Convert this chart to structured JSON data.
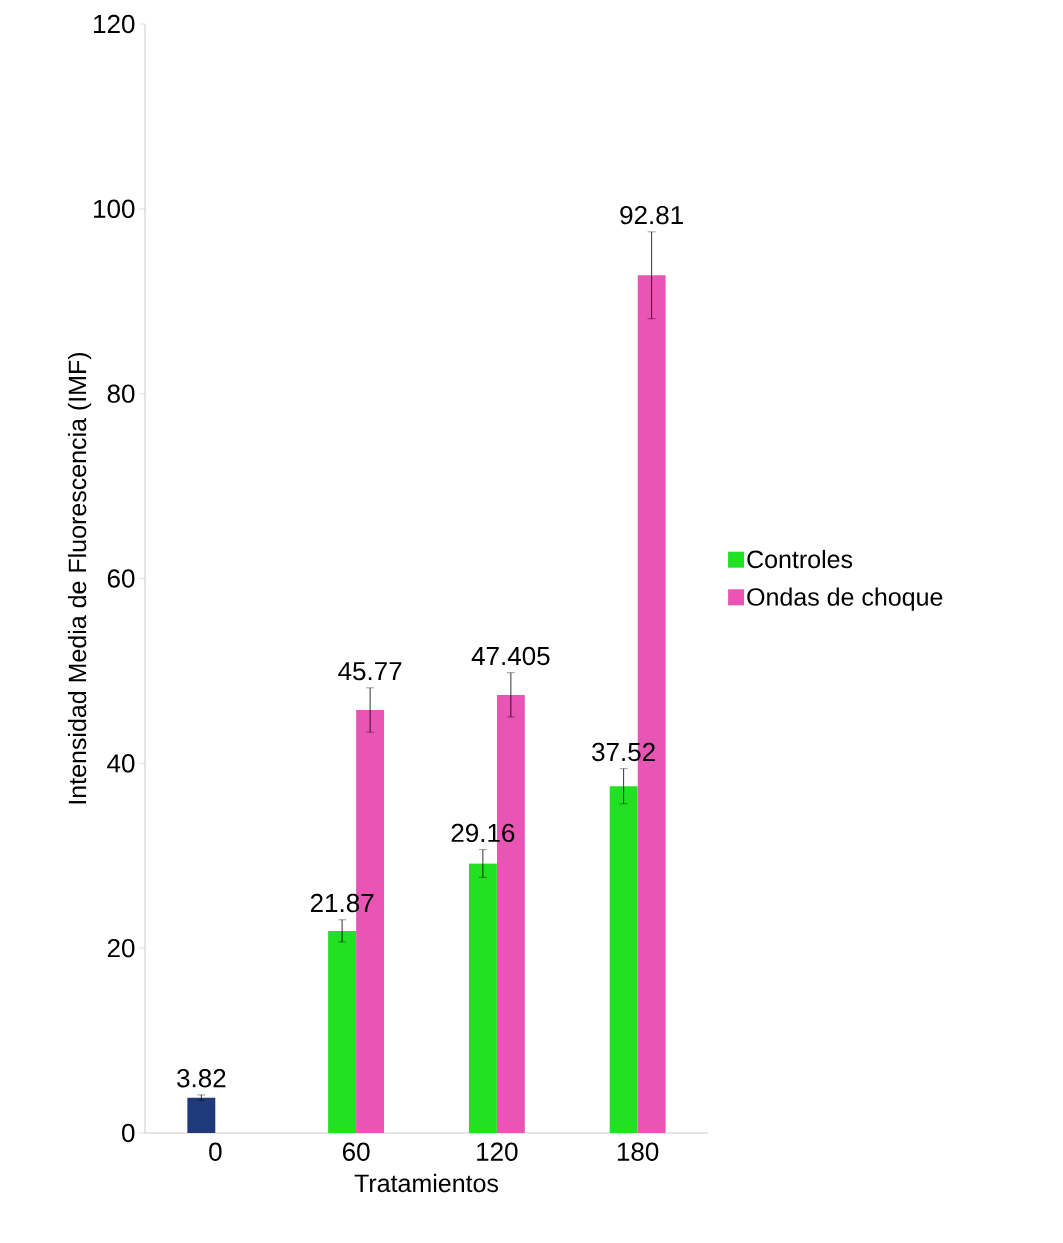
{
  "chart_data": {
    "type": "bar",
    "xlabel": "Tratamientos",
    "ylabel": "Intensidad Media de Fluorescencia (IMF)",
    "categories": [
      "0",
      "60",
      "120",
      "180"
    ],
    "series": [
      {
        "name": "Controles",
        "color": "#22e022",
        "colors": [
          "#1f3a7a",
          "#22e022",
          "#22e022",
          "#22e022"
        ],
        "values": [
          3.82,
          21.87,
          29.16,
          37.52
        ],
        "errors": [
          0.3,
          1.2,
          1.5,
          1.9
        ]
      },
      {
        "name": "Ondas de choque",
        "color": "#e855b5",
        "values": [
          null,
          45.77,
          47.405,
          92.81
        ],
        "errors": [
          null,
          2.4,
          2.4,
          4.7
        ]
      }
    ],
    "ylim": [
      0,
      120
    ],
    "yticks": [
      0,
      20,
      40,
      60,
      80,
      100,
      120
    ],
    "data_labels": true,
    "legend": "right"
  }
}
